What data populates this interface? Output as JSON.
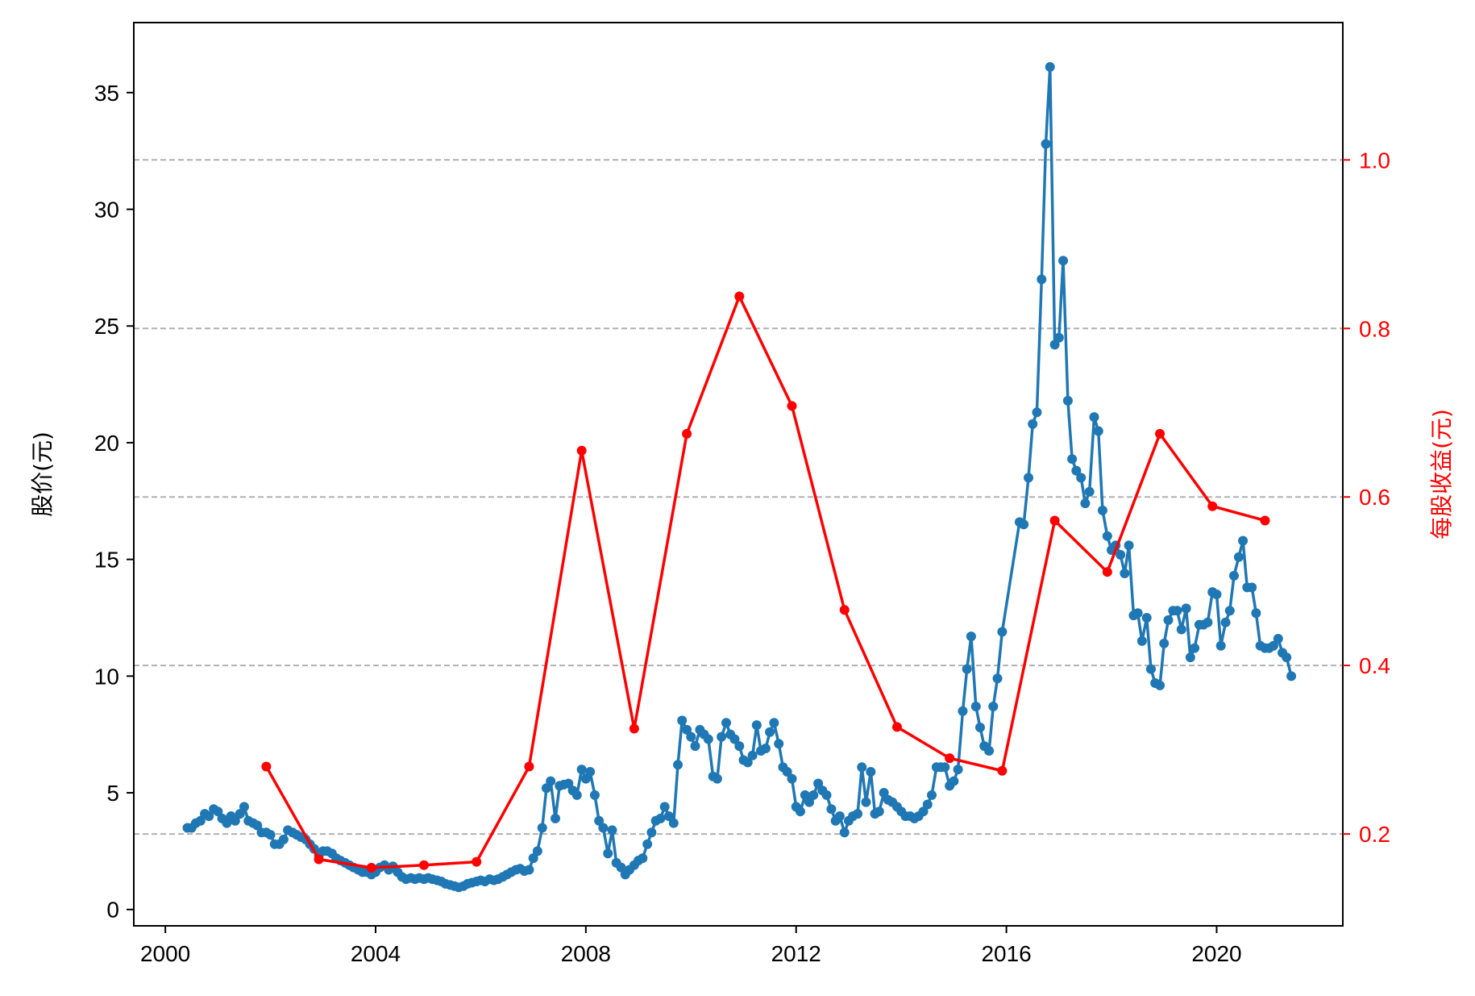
{
  "chart_data": {
    "type": "line",
    "title": "",
    "x_axis": {
      "label": "",
      "range": [
        1999.4,
        2022.4
      ],
      "ticks": [
        2000,
        2004,
        2008,
        2012,
        2016,
        2020
      ],
      "tick_labels": [
        "2000",
        "2004",
        "2008",
        "2012",
        "2016",
        "2020"
      ]
    },
    "y_left": {
      "label": "股价(元)",
      "range": [
        -0.7,
        38
      ],
      "ticks": [
        0,
        5,
        10,
        15,
        20,
        25,
        30,
        35
      ],
      "tick_labels": [
        "0",
        "5",
        "10",
        "15",
        "20",
        "25",
        "30",
        "35"
      ],
      "color": "#000000"
    },
    "y_right": {
      "label": "每股收益(元)",
      "range": [
        0.091,
        1.163
      ],
      "ticks": [
        0.2,
        0.4,
        0.6,
        0.8,
        1.0
      ],
      "tick_labels": [
        "0.2",
        "0.4",
        "0.6",
        "0.8",
        "1.0"
      ],
      "color": "#ff0000"
    },
    "grid": "horizontal dashed lines at right-axis ticks",
    "series": [
      {
        "axis": "left",
        "color": "#1f77b4",
        "marker": "circle",
        "points": [
          [
            2000.42,
            3.5
          ],
          [
            2000.5,
            3.5
          ],
          [
            2000.58,
            3.7
          ],
          [
            2000.67,
            3.8
          ],
          [
            2000.75,
            4.1
          ],
          [
            2000.83,
            4.0
          ],
          [
            2000.92,
            4.3
          ],
          [
            2001.0,
            4.2
          ],
          [
            2001.08,
            3.9
          ],
          [
            2001.17,
            3.7
          ],
          [
            2001.25,
            4.0
          ],
          [
            2001.33,
            3.8
          ],
          [
            2001.42,
            4.1
          ],
          [
            2001.5,
            4.4
          ],
          [
            2001.58,
            3.8
          ],
          [
            2001.67,
            3.7
          ],
          [
            2001.75,
            3.6
          ],
          [
            2001.83,
            3.3
          ],
          [
            2001.92,
            3.3
          ],
          [
            2002.0,
            3.2
          ],
          [
            2002.08,
            2.8
          ],
          [
            2002.17,
            2.8
          ],
          [
            2002.25,
            3.0
          ],
          [
            2002.33,
            3.4
          ],
          [
            2002.42,
            3.3
          ],
          [
            2002.5,
            3.2
          ],
          [
            2002.58,
            3.1
          ],
          [
            2002.67,
            3.0
          ],
          [
            2002.75,
            2.8
          ],
          [
            2002.83,
            2.6
          ],
          [
            2002.92,
            2.3
          ],
          [
            2003.0,
            2.5
          ],
          [
            2003.08,
            2.5
          ],
          [
            2003.17,
            2.4
          ],
          [
            2003.25,
            2.2
          ],
          [
            2003.33,
            2.1
          ],
          [
            2003.42,
            2.0
          ],
          [
            2003.5,
            1.9
          ],
          [
            2003.58,
            1.8
          ],
          [
            2003.67,
            1.7
          ],
          [
            2003.75,
            1.6
          ],
          [
            2003.83,
            1.6
          ],
          [
            2003.92,
            1.5
          ],
          [
            2004.0,
            1.6
          ],
          [
            2004.08,
            1.8
          ],
          [
            2004.17,
            1.9
          ],
          [
            2004.25,
            1.7
          ],
          [
            2004.33,
            1.85
          ],
          [
            2004.42,
            1.6
          ],
          [
            2004.5,
            1.4
          ],
          [
            2004.58,
            1.3
          ],
          [
            2004.67,
            1.35
          ],
          [
            2004.75,
            1.3
          ],
          [
            2004.83,
            1.35
          ],
          [
            2004.92,
            1.3
          ],
          [
            2005.0,
            1.35
          ],
          [
            2005.08,
            1.3
          ],
          [
            2005.17,
            1.25
          ],
          [
            2005.25,
            1.2
          ],
          [
            2005.33,
            1.1
          ],
          [
            2005.42,
            1.05
          ],
          [
            2005.5,
            1.0
          ],
          [
            2005.58,
            0.95
          ],
          [
            2005.67,
            1.0
          ],
          [
            2005.75,
            1.1
          ],
          [
            2005.83,
            1.15
          ],
          [
            2005.92,
            1.2
          ],
          [
            2006.0,
            1.25
          ],
          [
            2006.08,
            1.2
          ],
          [
            2006.17,
            1.3
          ],
          [
            2006.25,
            1.25
          ],
          [
            2006.33,
            1.3
          ],
          [
            2006.42,
            1.4
          ],
          [
            2006.5,
            1.5
          ],
          [
            2006.58,
            1.6
          ],
          [
            2006.67,
            1.7
          ],
          [
            2006.75,
            1.75
          ],
          [
            2006.83,
            1.65
          ],
          [
            2006.92,
            1.7
          ],
          [
            2007.0,
            2.2
          ],
          [
            2007.08,
            2.5
          ],
          [
            2007.17,
            3.5
          ],
          [
            2007.25,
            5.2
          ],
          [
            2007.33,
            5.5
          ],
          [
            2007.42,
            3.9
          ],
          [
            2007.5,
            5.3
          ],
          [
            2007.58,
            5.35
          ],
          [
            2007.67,
            5.4
          ],
          [
            2007.75,
            5.1
          ],
          [
            2007.83,
            4.9
          ],
          [
            2007.92,
            6.0
          ],
          [
            2008.0,
            5.6
          ],
          [
            2008.08,
            5.9
          ],
          [
            2008.17,
            4.9
          ],
          [
            2008.25,
            3.8
          ],
          [
            2008.33,
            3.5
          ],
          [
            2008.42,
            2.4
          ],
          [
            2008.5,
            3.4
          ],
          [
            2008.58,
            2.0
          ],
          [
            2008.67,
            1.8
          ],
          [
            2008.75,
            1.5
          ],
          [
            2008.83,
            1.7
          ],
          [
            2008.92,
            1.9
          ],
          [
            2009.0,
            2.1
          ],
          [
            2009.08,
            2.2
          ],
          [
            2009.17,
            2.8
          ],
          [
            2009.25,
            3.3
          ],
          [
            2009.33,
            3.8
          ],
          [
            2009.42,
            3.9
          ],
          [
            2009.5,
            4.4
          ],
          [
            2009.58,
            4.0
          ],
          [
            2009.67,
            3.7
          ],
          [
            2009.75,
            6.2
          ],
          [
            2009.83,
            8.1
          ],
          [
            2009.92,
            7.7
          ],
          [
            2010.0,
            7.4
          ],
          [
            2010.08,
            7.0
          ],
          [
            2010.17,
            7.7
          ],
          [
            2010.25,
            7.5
          ],
          [
            2010.33,
            7.3
          ],
          [
            2010.42,
            5.7
          ],
          [
            2010.5,
            5.6
          ],
          [
            2010.58,
            7.4
          ],
          [
            2010.67,
            8.0
          ],
          [
            2010.75,
            7.5
          ],
          [
            2010.83,
            7.3
          ],
          [
            2010.92,
            7.0
          ],
          [
            2011.0,
            6.4
          ],
          [
            2011.08,
            6.3
          ],
          [
            2011.17,
            6.6
          ],
          [
            2011.25,
            7.9
          ],
          [
            2011.33,
            6.8
          ],
          [
            2011.42,
            6.9
          ],
          [
            2011.5,
            7.6
          ],
          [
            2011.58,
            8.0
          ],
          [
            2011.67,
            7.1
          ],
          [
            2011.75,
            6.1
          ],
          [
            2011.83,
            5.9
          ],
          [
            2011.92,
            5.6
          ],
          [
            2012.0,
            4.4
          ],
          [
            2012.08,
            4.2
          ],
          [
            2012.17,
            4.9
          ],
          [
            2012.25,
            4.6
          ],
          [
            2012.33,
            4.9
          ],
          [
            2012.42,
            5.4
          ],
          [
            2012.5,
            5.1
          ],
          [
            2012.58,
            4.9
          ],
          [
            2012.67,
            4.3
          ],
          [
            2012.75,
            3.8
          ],
          [
            2012.83,
            4.0
          ],
          [
            2012.92,
            3.3
          ],
          [
            2013.0,
            3.8
          ],
          [
            2013.08,
            4.0
          ],
          [
            2013.17,
            4.1
          ],
          [
            2013.25,
            6.1
          ],
          [
            2013.33,
            4.6
          ],
          [
            2013.42,
            5.9
          ],
          [
            2013.5,
            4.1
          ],
          [
            2013.58,
            4.2
          ],
          [
            2013.67,
            5.0
          ],
          [
            2013.75,
            4.7
          ],
          [
            2013.83,
            4.6
          ],
          [
            2013.92,
            4.4
          ],
          [
            2014.0,
            4.2
          ],
          [
            2014.08,
            4.0
          ],
          [
            2014.17,
            4.0
          ],
          [
            2014.25,
            3.9
          ],
          [
            2014.33,
            4.0
          ],
          [
            2014.42,
            4.2
          ],
          [
            2014.5,
            4.5
          ],
          [
            2014.58,
            4.9
          ],
          [
            2014.67,
            6.1
          ],
          [
            2014.75,
            6.1
          ],
          [
            2014.83,
            6.1
          ],
          [
            2014.92,
            5.3
          ],
          [
            2015.0,
            5.5
          ],
          [
            2015.08,
            6.0
          ],
          [
            2015.17,
            8.5
          ],
          [
            2015.25,
            10.3
          ],
          [
            2015.33,
            11.7
          ],
          [
            2015.42,
            8.7
          ],
          [
            2015.5,
            7.8
          ],
          [
            2015.58,
            7.0
          ],
          [
            2015.67,
            6.8
          ],
          [
            2015.75,
            8.7
          ],
          [
            2015.83,
            9.9
          ],
          [
            2015.92,
            11.9
          ],
          [
            2016.25,
            16.6
          ],
          [
            2016.33,
            16.5
          ],
          [
            2016.42,
            18.5
          ],
          [
            2016.5,
            20.8
          ],
          [
            2016.58,
            21.3
          ],
          [
            2016.67,
            27.0
          ],
          [
            2016.75,
            32.8
          ],
          [
            2016.83,
            36.1
          ],
          [
            2016.92,
            24.2
          ],
          [
            2017.0,
            24.5
          ],
          [
            2017.08,
            27.8
          ],
          [
            2017.17,
            21.8
          ],
          [
            2017.25,
            19.3
          ],
          [
            2017.33,
            18.8
          ],
          [
            2017.42,
            18.5
          ],
          [
            2017.5,
            17.4
          ],
          [
            2017.58,
            17.9
          ],
          [
            2017.67,
            21.1
          ],
          [
            2017.75,
            20.5
          ],
          [
            2017.83,
            17.1
          ],
          [
            2017.92,
            16.0
          ],
          [
            2018.0,
            15.4
          ],
          [
            2018.08,
            15.6
          ],
          [
            2018.17,
            15.2
          ],
          [
            2018.25,
            14.4
          ],
          [
            2018.33,
            15.6
          ],
          [
            2018.42,
            12.6
          ],
          [
            2018.5,
            12.7
          ],
          [
            2018.58,
            11.5
          ],
          [
            2018.67,
            12.5
          ],
          [
            2018.75,
            10.3
          ],
          [
            2018.83,
            9.7
          ],
          [
            2018.92,
            9.6
          ],
          [
            2019.0,
            11.4
          ],
          [
            2019.08,
            12.4
          ],
          [
            2019.17,
            12.8
          ],
          [
            2019.25,
            12.8
          ],
          [
            2019.33,
            12.0
          ],
          [
            2019.42,
            12.9
          ],
          [
            2019.5,
            10.8
          ],
          [
            2019.58,
            11.2
          ],
          [
            2019.67,
            12.2
          ],
          [
            2019.75,
            12.2
          ],
          [
            2019.83,
            12.3
          ],
          [
            2019.92,
            13.6
          ],
          [
            2020.0,
            13.5
          ],
          [
            2020.08,
            11.3
          ],
          [
            2020.17,
            12.3
          ],
          [
            2020.25,
            12.8
          ],
          [
            2020.33,
            14.3
          ],
          [
            2020.42,
            15.1
          ],
          [
            2020.5,
            15.8
          ],
          [
            2020.58,
            13.8
          ],
          [
            2020.67,
            13.8
          ],
          [
            2020.75,
            12.7
          ],
          [
            2020.83,
            11.3
          ],
          [
            2020.92,
            11.2
          ],
          [
            2021.0,
            11.2
          ],
          [
            2021.08,
            11.3
          ],
          [
            2021.17,
            11.6
          ],
          [
            2021.25,
            11.0
          ],
          [
            2021.33,
            10.8
          ],
          [
            2021.42,
            10.0
          ]
        ]
      },
      {
        "axis": "right",
        "color": "#ff0000",
        "marker": "circle",
        "points": [
          [
            2001.92,
            0.28
          ],
          [
            2002.92,
            0.17
          ],
          [
            2003.92,
            0.16
          ],
          [
            2004.92,
            0.163
          ],
          [
            2005.92,
            0.167
          ],
          [
            2006.92,
            0.28
          ],
          [
            2007.92,
            0.655
          ],
          [
            2008.92,
            0.325
          ],
          [
            2009.92,
            0.675
          ],
          [
            2010.92,
            0.838
          ],
          [
            2011.92,
            0.708
          ],
          [
            2012.92,
            0.466
          ],
          [
            2013.92,
            0.327
          ],
          [
            2014.92,
            0.29
          ],
          [
            2015.92,
            0.275
          ],
          [
            2016.92,
            0.572
          ],
          [
            2017.92,
            0.511
          ],
          [
            2018.92,
            0.675
          ],
          [
            2019.92,
            0.589
          ],
          [
            2020.92,
            0.572
          ]
        ]
      }
    ]
  }
}
